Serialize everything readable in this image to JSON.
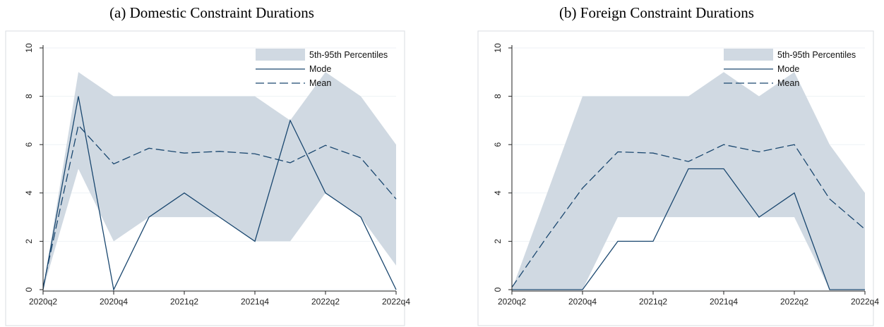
{
  "chart_data": [
    {
      "type": "line",
      "title": "(a) Domestic Constraint Durations",
      "xlabel": "",
      "ylabel": "",
      "ylim": [
        0,
        10
      ],
      "yticks": [
        0,
        2,
        4,
        6,
        8,
        10
      ],
      "x": [
        "2020q2",
        "2020q3",
        "2020q4",
        "2021q1",
        "2021q2",
        "2021q3",
        "2021q4",
        "2022q1",
        "2022q2",
        "2022q3",
        "2022q4"
      ],
      "xtick_labels": [
        "2020q2",
        "2020q4",
        "2021q2",
        "2021q4",
        "2022q2",
        "2022q4"
      ],
      "band": {
        "name": "5th-95th Percentiles",
        "lower": [
          0,
          5,
          2,
          3,
          3,
          3,
          2,
          2,
          4,
          3,
          1
        ],
        "upper": [
          0,
          9,
          8,
          8,
          8,
          8,
          8,
          7,
          9,
          8,
          6
        ]
      },
      "series": [
        {
          "name": "Mode",
          "style": "solid",
          "values": [
            0,
            8,
            0,
            3,
            4,
            3,
            2,
            7,
            4,
            3,
            0
          ]
        },
        {
          "name": "Mean",
          "style": "dashed",
          "values": [
            0.1,
            6.8,
            5.2,
            5.85,
            5.65,
            5.72,
            5.62,
            5.25,
            5.97,
            5.45,
            3.75
          ]
        }
      ],
      "legend": "top-right",
      "grid": true
    },
    {
      "type": "line",
      "title": "(b) Foreign Constraint Durations",
      "xlabel": "",
      "ylabel": "",
      "ylim": [
        0,
        10
      ],
      "yticks": [
        0,
        2,
        4,
        6,
        8,
        10
      ],
      "x": [
        "2020q2",
        "2020q3",
        "2020q4",
        "2021q1",
        "2021q2",
        "2021q3",
        "2021q4",
        "2022q1",
        "2022q2",
        "2022q3",
        "2022q4"
      ],
      "xtick_labels": [
        "2020q2",
        "2020q4",
        "2021q2",
        "2021q4",
        "2022q2",
        "2022q4"
      ],
      "band": {
        "name": "5th-95th Percentiles",
        "lower": [
          0,
          0,
          0,
          3,
          3,
          3,
          3,
          3,
          3,
          0,
          0
        ],
        "upper": [
          0,
          4,
          8,
          8,
          8,
          8,
          9,
          8,
          9,
          6,
          4
        ]
      },
      "series": [
        {
          "name": "Mode",
          "style": "solid",
          "values": [
            0,
            0,
            0,
            2,
            2,
            5,
            5,
            3,
            4,
            0,
            0
          ]
        },
        {
          "name": "Mean",
          "style": "dashed",
          "values": [
            0.1,
            2.2,
            4.2,
            5.7,
            5.65,
            5.3,
            6.0,
            5.7,
            6.0,
            3.75,
            2.5
          ]
        }
      ],
      "legend": "top-right",
      "grid": true
    }
  ],
  "colors": {
    "band": "#d0d9e2",
    "line": "#1a476f",
    "grid": "#eef2f5",
    "frame": "#d8dde2"
  }
}
